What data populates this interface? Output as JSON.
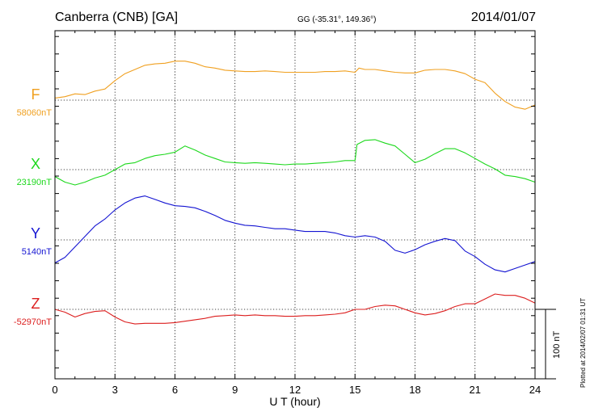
{
  "header": {
    "station": "Canberra (CNB)  [GA]",
    "coords": "GG (-35.31°, 149.36°)",
    "date": "2014/01/07"
  },
  "credit": "Plotted at 2014/02/07 01:31  UT",
  "scale_bar_label": "100 nT",
  "chart_data": {
    "type": "line",
    "xlabel": "U T (hour)",
    "xlim": [
      0,
      24
    ],
    "xticks": [
      0,
      3,
      6,
      9,
      12,
      15,
      18,
      21,
      24
    ],
    "grid": true,
    "nT_per_division": 100,
    "series": [
      {
        "name": "F",
        "color": "#f0a020",
        "baseline_label": "58060nT",
        "points": [
          [
            0,
            58063
          ],
          [
            0.5,
            58065
          ],
          [
            1,
            58069
          ],
          [
            1.5,
            58068
          ],
          [
            2,
            58073
          ],
          [
            2.5,
            58076
          ],
          [
            3,
            58088
          ],
          [
            3.5,
            58098
          ],
          [
            4,
            58104
          ],
          [
            4.5,
            58110
          ],
          [
            5,
            58112
          ],
          [
            5.5,
            58113
          ],
          [
            6,
            58116
          ],
          [
            6.5,
            58116
          ],
          [
            7,
            58113
          ],
          [
            7.5,
            58108
          ],
          [
            8,
            58106
          ],
          [
            8.5,
            58103
          ],
          [
            9,
            58102
          ],
          [
            9.5,
            58101
          ],
          [
            10,
            58101
          ],
          [
            10.5,
            58102
          ],
          [
            11,
            58101
          ],
          [
            11.5,
            58100
          ],
          [
            12,
            58100
          ],
          [
            12.5,
            58100
          ],
          [
            13,
            58100
          ],
          [
            13.5,
            58101
          ],
          [
            14,
            58101
          ],
          [
            14.5,
            58102
          ],
          [
            15,
            58100
          ],
          [
            15.2,
            58106
          ],
          [
            15.5,
            58104
          ],
          [
            16,
            58104
          ],
          [
            16.5,
            58102
          ],
          [
            17,
            58100
          ],
          [
            17.5,
            58099
          ],
          [
            18,
            58099
          ],
          [
            18.5,
            58103
          ],
          [
            19,
            58104
          ],
          [
            19.5,
            58104
          ],
          [
            20,
            58102
          ],
          [
            20.5,
            58098
          ],
          [
            21,
            58090
          ],
          [
            21.5,
            58085
          ],
          [
            22,
            58070
          ],
          [
            22.5,
            58058
          ],
          [
            23,
            58050
          ],
          [
            23.5,
            58047
          ],
          [
            24,
            58053
          ]
        ]
      },
      {
        "name": "X",
        "color": "#1cd81c",
        "baseline_label": "23190nT",
        "points": [
          [
            0,
            23180
          ],
          [
            0.5,
            23172
          ],
          [
            1,
            23168
          ],
          [
            1.5,
            23172
          ],
          [
            2,
            23178
          ],
          [
            2.5,
            23182
          ],
          [
            3,
            23190
          ],
          [
            3.5,
            23198
          ],
          [
            4,
            23200
          ],
          [
            4.5,
            23206
          ],
          [
            5,
            23210
          ],
          [
            5.5,
            23212
          ],
          [
            6,
            23215
          ],
          [
            6.5,
            23224
          ],
          [
            7,
            23218
          ],
          [
            7.5,
            23211
          ],
          [
            8,
            23206
          ],
          [
            8.5,
            23201
          ],
          [
            9,
            23200
          ],
          [
            9.5,
            23199
          ],
          [
            10,
            23200
          ],
          [
            10.5,
            23199
          ],
          [
            11,
            23198
          ],
          [
            11.5,
            23197
          ],
          [
            12,
            23198
          ],
          [
            12.5,
            23198
          ],
          [
            13,
            23199
          ],
          [
            13.5,
            23200
          ],
          [
            14,
            23201
          ],
          [
            14.5,
            23203
          ],
          [
            15,
            23203
          ],
          [
            15.1,
            23226
          ],
          [
            15.5,
            23232
          ],
          [
            16,
            23233
          ],
          [
            16.5,
            23228
          ],
          [
            17,
            23224
          ],
          [
            17.5,
            23212
          ],
          [
            18,
            23200
          ],
          [
            18.5,
            23205
          ],
          [
            19,
            23213
          ],
          [
            19.5,
            23220
          ],
          [
            20,
            23220
          ],
          [
            20.5,
            23214
          ],
          [
            21,
            23206
          ],
          [
            21.5,
            23198
          ],
          [
            22,
            23191
          ],
          [
            22.5,
            23182
          ],
          [
            23,
            23180
          ],
          [
            23.5,
            23177
          ],
          [
            24,
            23172
          ]
        ]
      },
      {
        "name": "Y",
        "color": "#1414d2",
        "baseline_label": "5140nT",
        "points": [
          [
            0,
            5107
          ],
          [
            0.5,
            5115
          ],
          [
            1,
            5130
          ],
          [
            1.5,
            5145
          ],
          [
            2,
            5160
          ],
          [
            2.5,
            5170
          ],
          [
            3,
            5183
          ],
          [
            3.5,
            5193
          ],
          [
            4,
            5200
          ],
          [
            4.5,
            5203
          ],
          [
            5,
            5198
          ],
          [
            5.5,
            5193
          ],
          [
            6,
            5189
          ],
          [
            6.5,
            5188
          ],
          [
            7,
            5186
          ],
          [
            7.5,
            5181
          ],
          [
            8,
            5175
          ],
          [
            8.5,
            5168
          ],
          [
            9,
            5164
          ],
          [
            9.5,
            5161
          ],
          [
            10,
            5160
          ],
          [
            10.5,
            5158
          ],
          [
            11,
            5156
          ],
          [
            11.5,
            5156
          ],
          [
            12,
            5154
          ],
          [
            12.5,
            5152
          ],
          [
            13,
            5152
          ],
          [
            13.5,
            5152
          ],
          [
            14,
            5150
          ],
          [
            14.5,
            5146
          ],
          [
            15,
            5144
          ],
          [
            15.5,
            5146
          ],
          [
            16,
            5144
          ],
          [
            16.5,
            5138
          ],
          [
            17,
            5125
          ],
          [
            17.5,
            5121
          ],
          [
            18,
            5126
          ],
          [
            18.5,
            5133
          ],
          [
            19,
            5138
          ],
          [
            19.5,
            5142
          ],
          [
            20,
            5139
          ],
          [
            20.5,
            5124
          ],
          [
            21,
            5116
          ],
          [
            21.5,
            5105
          ],
          [
            22,
            5097
          ],
          [
            22.5,
            5094
          ],
          [
            23,
            5099
          ],
          [
            23.5,
            5104
          ],
          [
            24,
            5109
          ]
        ]
      },
      {
        "name": "Z",
        "color": "#dc1e1e",
        "baseline_label": "-52970nT",
        "points": [
          [
            0,
            -52970
          ],
          [
            0.5,
            -52974
          ],
          [
            1,
            -52981
          ],
          [
            1.5,
            -52976
          ],
          [
            2,
            -52973
          ],
          [
            2.5,
            -52972
          ],
          [
            3,
            -52981
          ],
          [
            3.5,
            -52988
          ],
          [
            4,
            -52991
          ],
          [
            4.5,
            -52990
          ],
          [
            5,
            -52990
          ],
          [
            5.5,
            -52990
          ],
          [
            6,
            -52989
          ],
          [
            6.5,
            -52987
          ],
          [
            7,
            -52985
          ],
          [
            7.5,
            -52983
          ],
          [
            8,
            -52980
          ],
          [
            8.5,
            -52979
          ],
          [
            9,
            -52978
          ],
          [
            9.5,
            -52979
          ],
          [
            10,
            -52978
          ],
          [
            10.5,
            -52979
          ],
          [
            11,
            -52979
          ],
          [
            11.5,
            -52980
          ],
          [
            12,
            -52980
          ],
          [
            12.5,
            -52979
          ],
          [
            13,
            -52979
          ],
          [
            13.5,
            -52978
          ],
          [
            14,
            -52977
          ],
          [
            14.5,
            -52975
          ],
          [
            15,
            -52970
          ],
          [
            15.5,
            -52970
          ],
          [
            16,
            -52966
          ],
          [
            16.5,
            -52964
          ],
          [
            17,
            -52965
          ],
          [
            17.5,
            -52970
          ],
          [
            18,
            -52975
          ],
          [
            18.5,
            -52978
          ],
          [
            19,
            -52976
          ],
          [
            19.5,
            -52972
          ],
          [
            20,
            -52966
          ],
          [
            20.5,
            -52962
          ],
          [
            21,
            -52962
          ],
          [
            21.5,
            -52955
          ],
          [
            22,
            -52948
          ],
          [
            22.5,
            -52950
          ],
          [
            23,
            -52950
          ],
          [
            23.5,
            -52954
          ],
          [
            24,
            -52961
          ]
        ]
      }
    ]
  }
}
